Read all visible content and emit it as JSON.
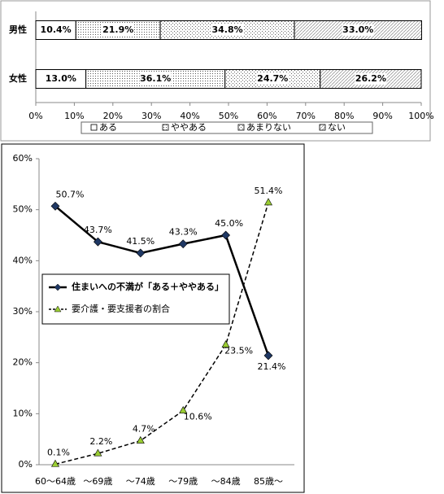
{
  "chart_data": [
    {
      "type": "bar",
      "orientation": "horizontal",
      "stacked": true,
      "categories": [
        "男性",
        "女性"
      ],
      "series": [
        {
          "name": "ある",
          "color": "#ffffff",
          "pattern": "none",
          "values": [
            10.4,
            13
          ],
          "value_labels": [
            "10.4%",
            "13.0%"
          ]
        },
        {
          "name": "ややある",
          "color": "#ffffff",
          "pattern": "dense-dots",
          "values": [
            21.9,
            36.1
          ],
          "value_labels": [
            "21.9%",
            "36.1%"
          ]
        },
        {
          "name": "あまりない",
          "color": "#ffffff",
          "pattern": "sparse-dots",
          "values": [
            34.8,
            24.7
          ],
          "value_labels": [
            "34.8%",
            "24.7%"
          ]
        },
        {
          "name": "ない",
          "color": "#ffffff",
          "pattern": "hatch",
          "values": [
            33,
            26.2
          ],
          "value_labels": [
            "33.0%",
            "26.2%"
          ]
        }
      ],
      "xlim": [
        0,
        100
      ],
      "xticks": [
        {
          "value": 0,
          "label": "0%"
        },
        {
          "value": 10,
          "label": "10%"
        },
        {
          "value": 20,
          "label": "20%"
        },
        {
          "value": 30,
          "label": "30%"
        },
        {
          "value": 40,
          "label": "40%"
        },
        {
          "value": 50,
          "label": "50%"
        },
        {
          "value": 60,
          "label": "60%"
        },
        {
          "value": 70,
          "label": "70%"
        },
        {
          "value": 80,
          "label": "80%"
        },
        {
          "value": 90,
          "label": "90%"
        },
        {
          "value": 100,
          "label": "100%"
        }
      ],
      "legend": "bottom"
    },
    {
      "type": "line",
      "categories": [
        "60〜64歳",
        "〜69歳",
        "〜74歳",
        "〜79歳",
        "〜84歳",
        "85歳〜"
      ],
      "series": [
        {
          "name": "住まいへの不満が「ある＋ややある」",
          "color": "#000000",
          "marker": "diamond",
          "marker_color": "#1f3864",
          "dash": "solid",
          "values": [
            50.7,
            43.7,
            41.5,
            43.3,
            45,
            21.4
          ],
          "value_labels": [
            "50.7%",
            "43.7%",
            "41.5%",
            "43.3%",
            "45.0%",
            "21.4%"
          ]
        },
        {
          "name": "要介護・要支援者の割合",
          "color": "#000000",
          "marker": "triangle",
          "marker_color": "#9acd32",
          "dash": "dashed",
          "values": [
            0.1,
            2.2,
            4.7,
            10.6,
            23.5,
            51.4
          ],
          "value_labels": [
            "0.1%",
            "2.2%",
            "4.7%",
            "10.6%",
            "23.5%",
            "51.4%"
          ]
        }
      ],
      "ylim": [
        0,
        60
      ],
      "yticks": [
        {
          "value": 0,
          "label": "0%"
        },
        {
          "value": 10,
          "label": "10%"
        },
        {
          "value": 20,
          "label": "20%"
        },
        {
          "value": 30,
          "label": "30%"
        },
        {
          "value": 40,
          "label": "40%"
        },
        {
          "value": 50,
          "label": "50%"
        },
        {
          "value": 60,
          "label": "60%"
        }
      ],
      "legend": "middle-left"
    }
  ]
}
